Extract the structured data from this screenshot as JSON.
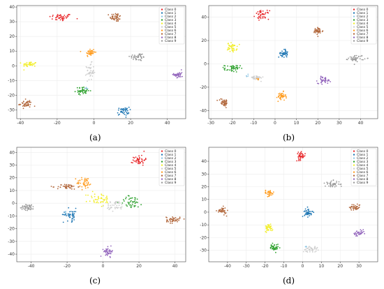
{
  "legend_labels": [
    "Class 0",
    "Class 1",
    "Class 2",
    "Class 3",
    "Class 4",
    "Class 5",
    "Class 6",
    "Class 7",
    "Class 8",
    "Class 9"
  ],
  "class_colors": [
    "#e8282b",
    "#1f77b4",
    "#90c8e6",
    "#2ca02c",
    "#f2ee2a",
    "#cfcfcf",
    "#ff9d21",
    "#b2683d",
    "#9467bd",
    "#9a9a9a"
  ],
  "chart_data": [
    {
      "type": "scatter",
      "caption": "(a)",
      "xlim": [
        -42,
        50
      ],
      "ylim": [
        -36,
        41
      ],
      "xticks": [
        -40,
        -20,
        0,
        20,
        40
      ],
      "yticks": [
        -30,
        -20,
        -10,
        0,
        10,
        20,
        30,
        40
      ],
      "grid": true,
      "legend": "top-right",
      "clusters": [
        {
          "class": 0,
          "x": -18,
          "y": 33,
          "sx": 3.2,
          "sy": 1.3
        },
        {
          "class": 7,
          "x": 12,
          "y": 33,
          "sx": 1.6,
          "sy": 1.5
        },
        {
          "class": 6,
          "x": -2,
          "y": 9,
          "sx": 1.3,
          "sy": 1.5
        },
        {
          "class": 9,
          "x": 24,
          "y": 6,
          "sx": 2.2,
          "sy": 1.4
        },
        {
          "class": 4,
          "x": -35,
          "y": 1,
          "sx": 2.0,
          "sy": 0.9
        },
        {
          "class": 5,
          "x": -2,
          "y": -4,
          "sx": 1.0,
          "sy": 2.8
        },
        {
          "class": 8,
          "x": 46,
          "y": -6,
          "sx": 1.2,
          "sy": 1.4
        },
        {
          "class": 3,
          "x": -6,
          "y": -17,
          "sx": 2.0,
          "sy": 1.2
        },
        {
          "class": 2,
          "x": -4,
          "y": -15,
          "sx": 0.4,
          "sy": 0.4
        },
        {
          "class": 1,
          "x": 16,
          "y": -31,
          "sx": 1.6,
          "sy": 1.4
        },
        {
          "class": 7,
          "x": -37,
          "y": -26,
          "sx": 1.7,
          "sy": 1.3
        }
      ]
    },
    {
      "type": "scatter",
      "caption": "(b)",
      "xlim": [
        -31,
        48
      ],
      "ylim": [
        -47,
        50
      ],
      "xticks": [
        -30,
        -20,
        -10,
        0,
        10,
        20,
        30,
        40
      ],
      "yticks": [
        -40,
        -20,
        0,
        20,
        40
      ],
      "grid": true,
      "legend": "top-right",
      "clusters": [
        {
          "class": 0,
          "x": -6,
          "y": 42,
          "sx": 1.6,
          "sy": 1.8
        },
        {
          "class": 7,
          "x": 20,
          "y": 28,
          "sx": 1.2,
          "sy": 1.6
        },
        {
          "class": 4,
          "x": -20,
          "y": 14,
          "sx": 1.1,
          "sy": 2.0
        },
        {
          "class": 1,
          "x": 4,
          "y": 9,
          "sx": 1.1,
          "sy": 1.7
        },
        {
          "class": 9,
          "x": 38,
          "y": 5,
          "sx": 1.8,
          "sy": 1.4
        },
        {
          "class": 3,
          "x": -20,
          "y": -4,
          "sx": 1.8,
          "sy": 1.5
        },
        {
          "class": 5,
          "x": -9,
          "y": -12,
          "sx": 1.8,
          "sy": 1.0
        },
        {
          "class": 2,
          "x": -13,
          "y": -10,
          "sx": 0.5,
          "sy": 0.5
        },
        {
          "class": 6,
          "x": -8,
          "y": -13,
          "sx": 0.4,
          "sy": 0.4
        },
        {
          "class": 8,
          "x": 23,
          "y": -14,
          "sx": 1.5,
          "sy": 1.4
        },
        {
          "class": 6,
          "x": 3,
          "y": -28,
          "sx": 1.0,
          "sy": 1.9
        },
        {
          "class": 7,
          "x": -24,
          "y": -33,
          "sx": 1.2,
          "sy": 1.7
        }
      ]
    },
    {
      "type": "scatter",
      "caption": "(c)",
      "xlim": [
        -48,
        46
      ],
      "ylim": [
        -46,
        44
      ],
      "xticks": [
        -40,
        -20,
        0,
        20,
        40
      ],
      "yticks": [
        -40,
        -30,
        -20,
        -10,
        0,
        10,
        20,
        30,
        40
      ],
      "grid": true,
      "legend": "top-right",
      "clusters": [
        {
          "class": 0,
          "x": 20,
          "y": 34,
          "sx": 1.7,
          "sy": 2.0
        },
        {
          "class": 6,
          "x": -10,
          "y": 16,
          "sx": 2.3,
          "sy": 2.4
        },
        {
          "class": 7,
          "x": -20,
          "y": 13,
          "sx": 2.8,
          "sy": 1.0
        },
        {
          "class": 4,
          "x": -2,
          "y": 3,
          "sx": 3.2,
          "sy": 3.0
        },
        {
          "class": 3,
          "x": 16,
          "y": 1,
          "sx": 3.2,
          "sy": 2.4
        },
        {
          "class": 5,
          "x": 7,
          "y": -2,
          "sx": 2.6,
          "sy": 2.0
        },
        {
          "class": 9,
          "x": -42,
          "y": -3,
          "sx": 1.9,
          "sy": 1.3
        },
        {
          "class": 1,
          "x": -18,
          "y": -9,
          "sx": 2.0,
          "sy": 2.5
        },
        {
          "class": 2,
          "x": -21,
          "y": -7,
          "sx": 0.5,
          "sy": 0.5
        },
        {
          "class": 7,
          "x": 39,
          "y": -13,
          "sx": 1.9,
          "sy": 1.3
        },
        {
          "class": 8,
          "x": 3,
          "y": -38,
          "sx": 1.3,
          "sy": 1.7
        }
      ]
    },
    {
      "type": "scatter",
      "caption": "(d)",
      "xlim": [
        -50,
        40
      ],
      "ylim": [
        -39,
        51
      ],
      "xticks": [
        -40,
        -30,
        -20,
        -10,
        0,
        10,
        20,
        30
      ],
      "yticks": [
        -30,
        -20,
        -10,
        0,
        10,
        20,
        30,
        40
      ],
      "grid": true,
      "legend": "top-right",
      "clusters": [
        {
          "class": 0,
          "x": -1,
          "y": 44,
          "sx": 1.2,
          "sy": 1.5
        },
        {
          "class": 9,
          "x": 16,
          "y": 22,
          "sx": 2.0,
          "sy": 1.3
        },
        {
          "class": 6,
          "x": -18,
          "y": 15,
          "sx": 1.4,
          "sy": 1.2
        },
        {
          "class": 7,
          "x": 28,
          "y": 4,
          "sx": 1.5,
          "sy": 1.3
        },
        {
          "class": 7,
          "x": -43,
          "y": 1,
          "sx": 1.2,
          "sy": 1.4
        },
        {
          "class": 1,
          "x": 3,
          "y": 0,
          "sx": 1.0,
          "sy": 1.8
        },
        {
          "class": 8,
          "x": 30,
          "y": -17,
          "sx": 1.5,
          "sy": 1.3
        },
        {
          "class": 4,
          "x": -18,
          "y": -12,
          "sx": 1.1,
          "sy": 1.5
        },
        {
          "class": 3,
          "x": -15,
          "y": -28,
          "sx": 1.1,
          "sy": 1.5
        },
        {
          "class": 5,
          "x": 4,
          "y": -29,
          "sx": 2.0,
          "sy": 1.2
        },
        {
          "class": 2,
          "x": 2,
          "y": -27,
          "sx": 0.3,
          "sy": 0.3
        }
      ]
    }
  ]
}
